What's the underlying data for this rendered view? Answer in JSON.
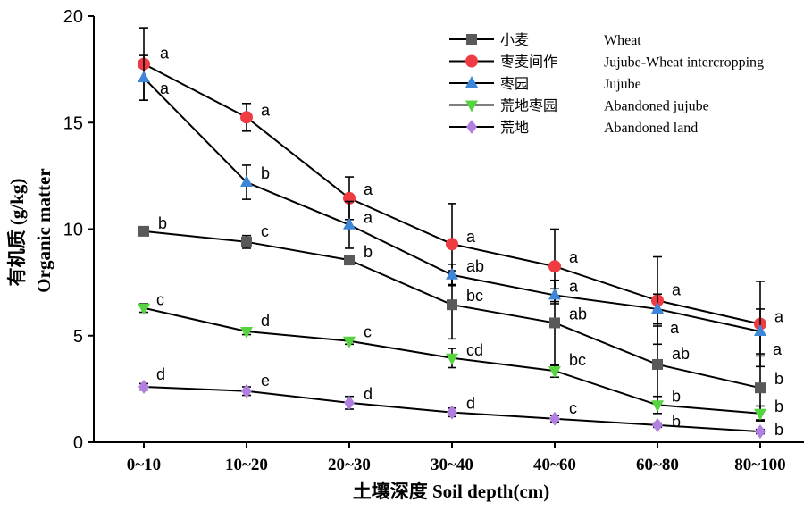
{
  "chart_data": {
    "type": "line",
    "xlabel": "土壤深度 Soil depth(cm)",
    "ylabel_cn": "有机质 (g/kg)",
    "ylabel_en": "Organic matter",
    "ylim": [
      0,
      20
    ],
    "yticks": [
      "0",
      "5",
      "10",
      "15",
      "20"
    ],
    "categories": [
      "0~10",
      "10~20",
      "20~30",
      "30~40",
      "40~60",
      "60~80",
      "80~100"
    ],
    "series": [
      {
        "name": "小麦",
        "name_en": "Wheat",
        "color": "#595959",
        "marker": "square",
        "values": [
          9.9,
          9.4,
          8.55,
          6.45,
          5.6,
          3.65,
          2.55
        ],
        "errors": [
          0.2,
          0.3,
          0.2,
          1.6,
          2.0,
          1.8,
          1.5
        ],
        "letters": [
          "b",
          "c",
          "b",
          "bc",
          "ab",
          "ab",
          "b"
        ]
      },
      {
        "name": "枣麦间作",
        "name_en": "Jujube-Wheat intercropping",
        "color": "#ef3b42",
        "marker": "circle",
        "values": [
          17.75,
          15.25,
          11.45,
          9.3,
          8.25,
          6.65,
          5.55
        ],
        "errors": [
          1.7,
          0.65,
          1.0,
          1.9,
          1.75,
          2.05,
          2.0
        ],
        "letters": [
          "a",
          "a",
          "a",
          "a",
          "a",
          "a",
          "a"
        ]
      },
      {
        "name": "枣园",
        "name_en": "Jujube",
        "color": "#3d86d8",
        "marker": "triangle-up",
        "values": [
          17.1,
          12.2,
          10.2,
          7.85,
          6.9,
          6.25,
          5.2
        ],
        "errors": [
          1.05,
          0.8,
          1.1,
          0.5,
          0.3,
          0.7,
          1.05
        ],
        "letters": [
          "a",
          "b",
          "a",
          "ab",
          "a",
          "a",
          "a"
        ]
      },
      {
        "name": "荒地枣园",
        "name_en": "Abandoned jujube",
        "color": "#55d43f",
        "marker": "triangle-down",
        "values": [
          6.3,
          5.2,
          4.75,
          3.95,
          3.35,
          1.75,
          1.35
        ],
        "errors": [
          0.2,
          0.15,
          0.15,
          0.45,
          0.3,
          0.4,
          0.35
        ],
        "letters": [
          "c",
          "d",
          "c",
          "cd",
          "bc",
          "b",
          "b"
        ]
      },
      {
        "name": "荒地",
        "name_en": "Abandoned land",
        "color": "#b17fe0",
        "marker": "diamond",
        "values": [
          2.6,
          2.4,
          1.85,
          1.4,
          1.1,
          0.8,
          0.5
        ],
        "errors": [
          0.15,
          0.2,
          0.3,
          0.2,
          0.15,
          0.1,
          0.1
        ],
        "letters": [
          "d",
          "e",
          "d",
          "d",
          "c",
          "b",
          "b"
        ]
      }
    ],
    "legend_position": "top-right",
    "grid": false
  }
}
